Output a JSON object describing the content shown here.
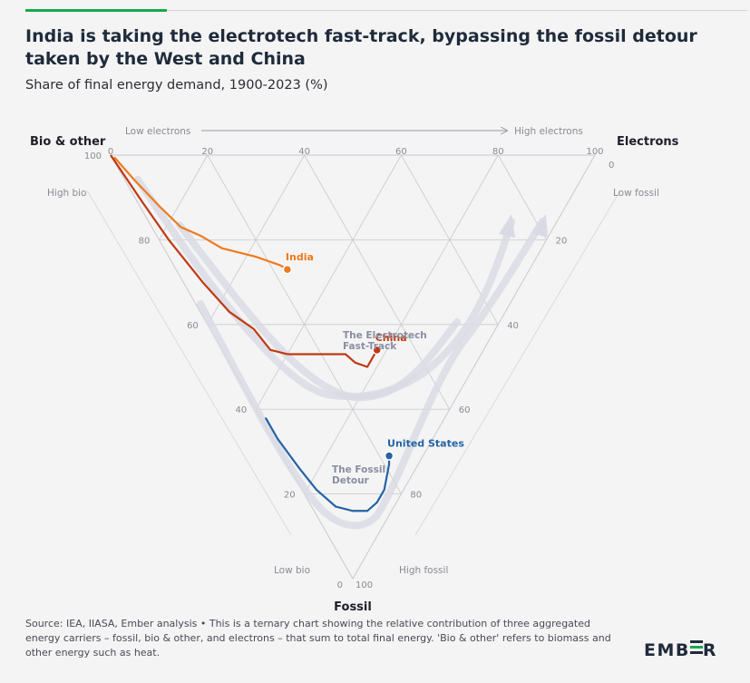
{
  "header": {
    "title": "India is taking the electrotech fast-track, bypassing the fossil detour taken by the West and China",
    "subtitle": "Share of final energy demand, 1900-2023 (%)"
  },
  "footer": {
    "source": "Source: IEA, IIASA, Ember analysis • This is a ternary chart showing the relative contribution of three aggregated energy carriers – fossil, bio & other, and electrons – that sum to total final energy. 'Bio & other' refers to biomass and other energy such as heat."
  },
  "brand": {
    "logo_pre": "EMB",
    "logo_post": "R"
  },
  "colors": {
    "india": "#ee7a1e",
    "china": "#c13912",
    "united_states": "#2563a5",
    "grid": "#c9c9cf",
    "arrow": "#d9dae4"
  },
  "chart_data": {
    "type": "ternary",
    "axes": {
      "bio": {
        "label": "Bio & other",
        "low": "Low bio",
        "high": "High bio",
        "ticks": [
          20,
          40,
          60,
          80,
          100
        ]
      },
      "electrons": {
        "label": "Electrons",
        "low": "Low electrons",
        "high": "High electrons",
        "ticks": [
          0,
          20,
          40,
          60,
          80,
          100
        ]
      },
      "fossil": {
        "label": "Fossil",
        "low": "Low fossil",
        "high": "High fossil",
        "ticks": [
          0,
          20,
          40,
          60,
          80,
          100
        ]
      }
    },
    "corner_labels": {
      "bio_zero": "0",
      "fossil_zero": "0",
      "electrons_zero": "0"
    },
    "annotations": {
      "fast_track": [
        "The Electrotech",
        "Fast-Track"
      ],
      "fossil_detour": [
        "The Fossil",
        "Detour"
      ]
    },
    "series": [
      {
        "name": "India",
        "points": [
          {
            "electrons": 0.5,
            "bio": 99,
            "fossil": 0.5
          },
          {
            "electrons": 2,
            "bio": 92,
            "fossil": 6
          },
          {
            "electrons": 4,
            "bio": 84,
            "fossil": 12
          },
          {
            "electrons": 6,
            "bio": 77,
            "fossil": 17
          },
          {
            "electrons": 9,
            "bio": 72,
            "fossil": 19
          },
          {
            "electrons": 12,
            "bio": 66,
            "fossil": 22
          },
          {
            "electrons": 15,
            "bio": 62,
            "fossil": 23
          },
          {
            "electrons": 18,
            "bio": 58,
            "fossil": 24
          },
          {
            "electrons": 20,
            "bio": 55,
            "fossil": 25
          },
          {
            "electrons": 22,
            "bio": 52,
            "fossil": 26
          },
          {
            "electrons": 23,
            "bio": 50,
            "fossil": 27
          }
        ]
      },
      {
        "name": "China",
        "points": [
          {
            "electrons": 0,
            "bio": 100,
            "fossil": 0
          },
          {
            "electrons": 1,
            "bio": 88,
            "fossil": 11
          },
          {
            "electrons": 2,
            "bio": 78,
            "fossil": 20
          },
          {
            "electrons": 4,
            "bio": 66,
            "fossil": 30
          },
          {
            "electrons": 6,
            "bio": 57,
            "fossil": 37
          },
          {
            "electrons": 9,
            "bio": 50,
            "fossil": 41
          },
          {
            "electrons": 10,
            "bio": 44,
            "fossil": 46
          },
          {
            "electrons": 13,
            "bio": 40,
            "fossil": 47
          },
          {
            "electrons": 16,
            "bio": 37,
            "fossil": 47
          },
          {
            "electrons": 20,
            "bio": 33,
            "fossil": 47
          },
          {
            "electrons": 23,
            "bio": 30,
            "fossil": 47
          },
          {
            "electrons": 25,
            "bio": 28,
            "fossil": 47
          },
          {
            "electrons": 26,
            "bio": 25,
            "fossil": 49
          },
          {
            "electrons": 28,
            "bio": 22,
            "fossil": 50
          },
          {
            "electrons": 30,
            "bio": 22,
            "fossil": 48
          },
          {
            "electrons": 32,
            "bio": 22,
            "fossil": 46
          }
        ]
      },
      {
        "name": "United States",
        "points": [
          {
            "electrons": 1,
            "bio": 37,
            "fossil": 62
          },
          {
            "electrons": 1,
            "bio": 32,
            "fossil": 67
          },
          {
            "electrons": 2,
            "bio": 24,
            "fossil": 74
          },
          {
            "electrons": 3,
            "bio": 18,
            "fossil": 79
          },
          {
            "electrons": 5,
            "bio": 12,
            "fossil": 83
          },
          {
            "electrons": 8,
            "bio": 8,
            "fossil": 84
          },
          {
            "electrons": 11,
            "bio": 5,
            "fossil": 84
          },
          {
            "electrons": 14,
            "bio": 4,
            "fossil": 82
          },
          {
            "electrons": 17,
            "bio": 4,
            "fossil": 79
          },
          {
            "electrons": 19,
            "bio": 5,
            "fossil": 76
          },
          {
            "electrons": 21,
            "bio": 6,
            "fossil": 73
          },
          {
            "electrons": 22,
            "bio": 7,
            "fossil": 71
          }
        ]
      }
    ]
  }
}
